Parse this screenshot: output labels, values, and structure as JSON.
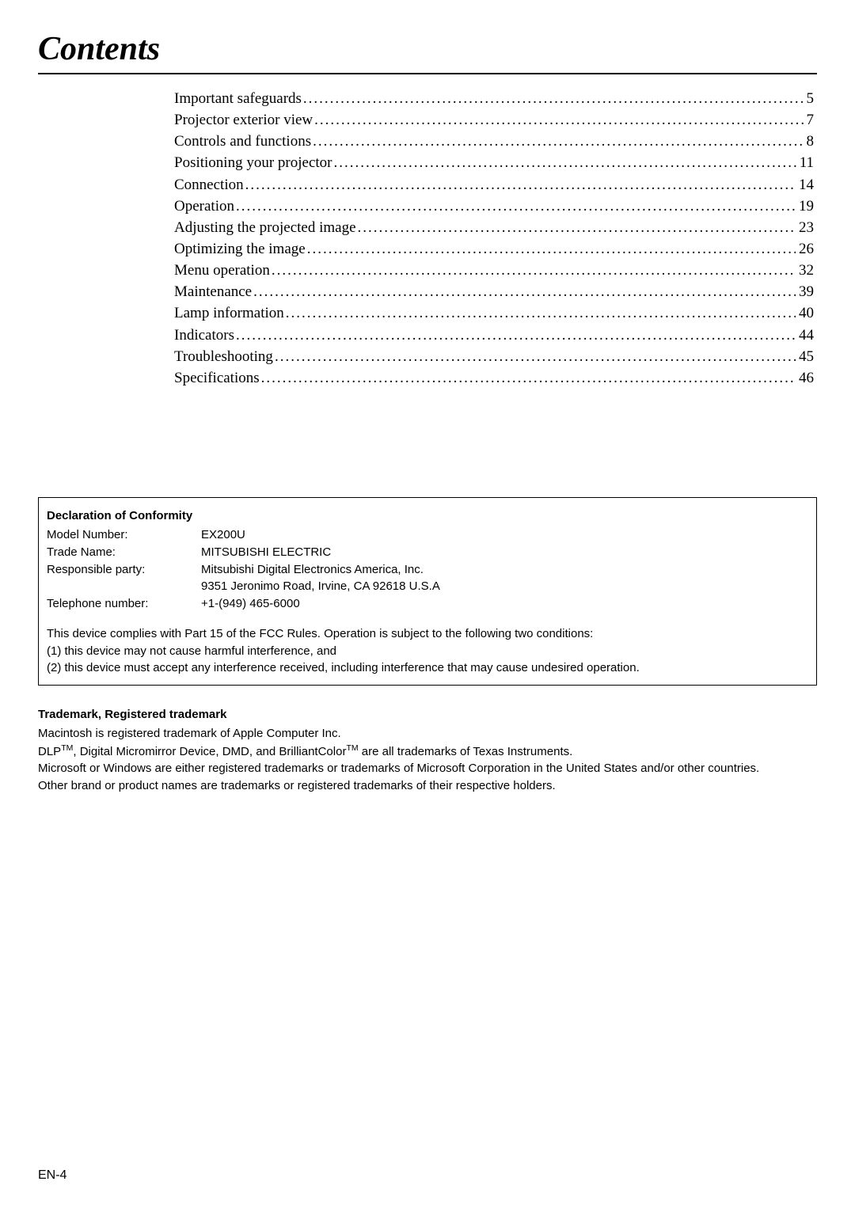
{
  "page": {
    "title": "Contents",
    "footer": "EN-4"
  },
  "toc": {
    "items": [
      {
        "title": "Important safeguards",
        "page": "5"
      },
      {
        "title": "Projector exterior view",
        "page": "7"
      },
      {
        "title": "Controls and functions",
        "page": "8"
      },
      {
        "title": "Positioning your projector",
        "page": "11"
      },
      {
        "title": "Connection",
        "page": "14"
      },
      {
        "title": "Operation",
        "page": "19"
      },
      {
        "title": "Adjusting the projected image",
        "page": "23"
      },
      {
        "title": "Optimizing the image",
        "page": "26"
      },
      {
        "title": "Menu operation",
        "page": "32"
      },
      {
        "title": "Maintenance",
        "page": "39"
      },
      {
        "title": "Lamp information",
        "page": "40"
      },
      {
        "title": "Indicators",
        "page": "44"
      },
      {
        "title": "Troubleshooting",
        "page": "45"
      },
      {
        "title": "Specifications",
        "page": "46"
      }
    ]
  },
  "declaration": {
    "heading": "Declaration of Conformity",
    "rows": [
      {
        "label": "Model Number:",
        "value": "EX200U"
      },
      {
        "label": "Trade Name:",
        "value": "MITSUBISHI ELECTRIC"
      },
      {
        "label": "Responsible party:",
        "value": "Mitsubishi Digital Electronics America, Inc."
      },
      {
        "label": "",
        "value": "9351 Jeronimo Road, Irvine, CA 92618 U.S.A"
      },
      {
        "label": "Telephone number:",
        "value": "+1-(949) 465-6000"
      }
    ],
    "compliance": {
      "line1": "This device complies with Part 15 of the FCC Rules. Operation is subject to the following two conditions:",
      "line2": "(1) this device may not cause harmful interference, and",
      "line3": "(2) this device must accept any interference received, including interference that may cause undesired operation."
    }
  },
  "trademark": {
    "heading": "Trademark, Registered trademark",
    "line1": "Macintosh is registered trademark of Apple Computer Inc.",
    "line2_pre": "DLP",
    "line2_sup1": "TM",
    "line2_mid": ", Digital Micromirror Device, DMD, and BrilliantColor",
    "line2_sup2": "TM",
    "line2_post": " are all trademarks of Texas Instruments.",
    "line3": "Microsoft or Windows are either registered trademarks or trademarks of Microsoft Corporation in the United States and/or other countries.",
    "line4": "Other brand or product names are trademarks or registered trademarks of their respective holders."
  }
}
